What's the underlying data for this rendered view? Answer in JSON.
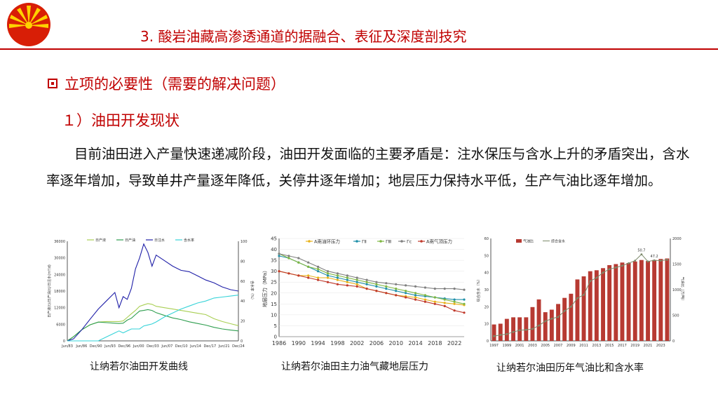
{
  "header": {
    "title": "3. 酸岩油藏高渗透通道的据融合、表征及深度剖技究"
  },
  "section": {
    "heading": "立项的必要性（需要的解决问题）",
    "subheading": "１）油田开发现状"
  },
  "body": {
    "paragraph": "目前油田进入产量快速递减阶段，油田开发面临的主要矛盾是：注水保压与含水上升的矛盾突出，含水率逐年增加，导致单井产量逐年降低，关停井逐年增加；地层压力保持水平低，生产气油比逐年增加。"
  },
  "colors": {
    "accent": "#c00000"
  },
  "figures": [
    {
      "caption": "让纳若尔油田开发曲线"
    },
    {
      "caption": "让纳若尔油田主力油气藏地层压力"
    },
    {
      "caption": "让纳若尔油田历年气油比和含水率"
    }
  ],
  "chart_data": [
    {
      "type": "line",
      "legend": [
        "日产液",
        "日产油",
        "日注水",
        "含水率"
      ],
      "xlabel": "",
      "ylabel_left": "日产液(t)/日产油(t)/日注水(m³/d)",
      "ylabel_right": "含水率（%）",
      "x_ticks": [
        "Jun/83",
        "Jun/86",
        "Dec/90",
        "Jun/93",
        "Dec/96",
        "Jun/00",
        "Dec/03",
        "Jun/07",
        "Dec/10",
        "Jun/14",
        "Dec/17",
        "Jun/21",
        "Dec/24"
      ],
      "ylim_left": [
        0,
        36000
      ],
      "y_ticks_left": [
        "0",
        "6000",
        "12000",
        "18000",
        "24000",
        "30000",
        "36000"
      ],
      "ylim_right": [
        0,
        100
      ],
      "y_ticks_right": [
        "0",
        "20",
        "40",
        "60",
        "80",
        "100"
      ],
      "x": [
        1983.5,
        1985,
        1987,
        1989,
        1991,
        1993,
        1995,
        1996,
        1997,
        1998,
        1999,
        2000,
        2001,
        2002,
        2003,
        2004,
        2005,
        2007,
        2009,
        2011,
        2013,
        2015,
        2017,
        2019,
        2021,
        2023,
        2024.9
      ],
      "series": [
        {
          "name": "日产液",
          "axis": "left",
          "values": [
            0,
            1500,
            4000,
            5800,
            6800,
            7000,
            7000,
            7000,
            7200,
            8500,
            9800,
            11000,
            12500,
            13000,
            13500,
            13200,
            12500,
            12000,
            11500,
            11000,
            10500,
            10000,
            9500,
            8000,
            7000,
            6200,
            5500
          ]
        },
        {
          "name": "日产油",
          "axis": "left",
          "values": [
            0,
            1500,
            4000,
            5800,
            6800,
            6600,
            6400,
            6300,
            6400,
            7500,
            8200,
            9500,
            10800,
            11000,
            11300,
            11000,
            10200,
            9200,
            8300,
            7700,
            6900,
            6300,
            5700,
            4900,
            4300,
            3900,
            3600
          ]
        },
        {
          "name": "日注水",
          "axis": "left",
          "values": [
            0,
            700,
            4000,
            7800,
            11500,
            14500,
            17500,
            12000,
            16000,
            15000,
            19000,
            26000,
            30000,
            35000,
            32000,
            27000,
            31000,
            29000,
            27000,
            25500,
            25000,
            23500,
            22000,
            21000,
            19500,
            18500,
            18000
          ]
        },
        {
          "name": "含水率",
          "axis": "right",
          "values": [
            0,
            0,
            0,
            0,
            0,
            4,
            8,
            10,
            8,
            10,
            12,
            12,
            12,
            15,
            16,
            17,
            19,
            24,
            28,
            32,
            35,
            38,
            40,
            43,
            44,
            45,
            46
          ]
        }
      ]
    },
    {
      "type": "line",
      "legend": [
        "A南油环压力",
        "ΓⅡ",
        "ΓⅢ",
        "Γc",
        "A南气顶压力"
      ],
      "xlabel": "",
      "ylabel": "地层压力（MPa）",
      "ylim": [
        0,
        45
      ],
      "y_ticks": [
        "0",
        "5",
        "10",
        "15",
        "20",
        "25",
        "30",
        "35",
        "40",
        "45"
      ],
      "x_ticks": [
        "1986",
        "1990",
        "1994",
        "1998",
        "2002",
        "2006",
        "2010",
        "2014",
        "2018",
        "2022"
      ],
      "x": [
        1986,
        1988,
        1990,
        1992,
        1994,
        1996,
        1998,
        2000,
        2002,
        2004,
        2006,
        2008,
        2010,
        2012,
        2014,
        2016,
        2018,
        2020,
        2022,
        2024
      ],
      "series": [
        {
          "name": "A南油环压力",
          "values": [
            30,
            29,
            28,
            28,
            27,
            27,
            26,
            25,
            24,
            22,
            21,
            20,
            19,
            18.5,
            18,
            17,
            16,
            15.5,
            15,
            14.5
          ]
        },
        {
          "name": "ΓⅡ",
          "values": [
            37,
            36,
            34,
            32,
            30,
            28,
            27,
            26,
            25,
            24,
            23,
            22,
            21,
            20,
            19,
            18.5,
            18,
            17.5,
            17,
            17
          ]
        },
        {
          "name": "ΓⅢ",
          "values": [
            38,
            36,
            34,
            32,
            31,
            29,
            28,
            27,
            26,
            25,
            24,
            23,
            22,
            21,
            20,
            19,
            18,
            17,
            16,
            15
          ]
        },
        {
          "name": "Γc",
          "values": [
            38,
            37,
            36,
            34,
            32,
            30,
            29,
            28,
            27,
            26,
            25,
            24.5,
            24,
            23.5,
            23,
            22.5,
            22,
            22,
            22,
            21.5
          ]
        },
        {
          "name": "A南气顶压力",
          "values": [
            30,
            29,
            28,
            27,
            26,
            25,
            24,
            23.5,
            23,
            22,
            21,
            20,
            19,
            18,
            17,
            16,
            15,
            14,
            12,
            11
          ]
        }
      ]
    },
    {
      "type": "bar",
      "legend": [
        "气油比",
        "综合含水"
      ],
      "ylabel_left": "综合含水（%）",
      "ylabel_right": "气油比（方/吨）",
      "ylim_left": [
        0,
        60
      ],
      "y_ticks_left": [
        "0",
        "10",
        "20",
        "30",
        "40",
        "50",
        "60"
      ],
      "ylim_right": [
        0,
        2000
      ],
      "y_ticks_right": [
        "0",
        "500",
        "1000",
        "1500",
        "2000"
      ],
      "categories": [
        "1997",
        "1998",
        "1999",
        "2000",
        "2001",
        "2002",
        "2003",
        "2004",
        "2005",
        "2006",
        "2007",
        "2008",
        "2009",
        "2010",
        "2011",
        "2012",
        "2013",
        "2014",
        "2015",
        "2016",
        "2017",
        "2018",
        "2019",
        "2020",
        "2021",
        "2022",
        "2023",
        "2024"
      ],
      "x_ticks": [
        "1997",
        "1999",
        "2001",
        "2003",
        "2005",
        "2007",
        "2009",
        "2011",
        "2013",
        "2015",
        "2017",
        "2019",
        "2021",
        "2023"
      ],
      "series": [
        {
          "name": "气油比",
          "axis": "right",
          "values": [
            320,
            335,
            430,
            460,
            460,
            460,
            660,
            810,
            560,
            610,
            720,
            840,
            920,
            1200,
            1260,
            1360,
            1380,
            1420,
            1480,
            1500,
            1530,
            1520,
            1550,
            1580,
            1560,
            1580,
            1600,
            1610
          ]
        },
        {
          "name": "综合含水",
          "axis": "left",
          "values": [
            2.8,
            3.5,
            4.0,
            5.2,
            6.2,
            6.5,
            7.0,
            9.0,
            11.5,
            13.0,
            14.0,
            17.5,
            20.0,
            25.0,
            27.0,
            35.0,
            37.0,
            40.0,
            42.0,
            43.0,
            44.0,
            45.5,
            47.0,
            50.7,
            46.5,
            47.2,
            47.0,
            47.5
          ]
        }
      ],
      "annotations": [
        "50.7",
        "47.2"
      ]
    }
  ]
}
